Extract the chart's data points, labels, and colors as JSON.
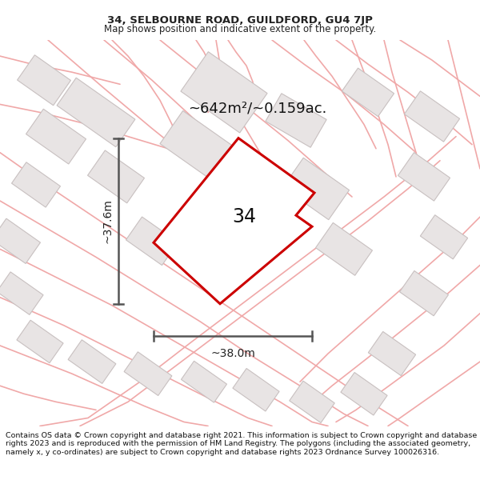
{
  "title_line1": "34, SELBOURNE ROAD, GUILDFORD, GU4 7JP",
  "title_line2": "Map shows position and indicative extent of the property.",
  "copyright_text": "Contains OS data © Crown copyright and database right 2021. This information is subject to Crown copyright and database rights 2023 and is reproduced with the permission of HM Land Registry. The polygons (including the associated geometry, namely x, y co-ordinates) are subject to Crown copyright and database rights 2023 Ordnance Survey 100026316.",
  "area_label": "~642m²/~0.159ac.",
  "height_label": "~37.6m",
  "width_label": "~38.0m",
  "property_number": "34",
  "map_bg_color": "#f7f4f4",
  "road_color": "#f0a8a8",
  "building_fill": "#e8e4e4",
  "building_edge": "#c8c0c0",
  "property_fill": "#ffffff",
  "property_edge": "#cc0000",
  "dim_line_color": "#555555",
  "title_fontsize": 9.5,
  "subtitle_fontsize": 8.5,
  "area_fontsize": 13,
  "number_fontsize": 17,
  "dim_fontsize": 10,
  "copyright_fontsize": 6.8
}
